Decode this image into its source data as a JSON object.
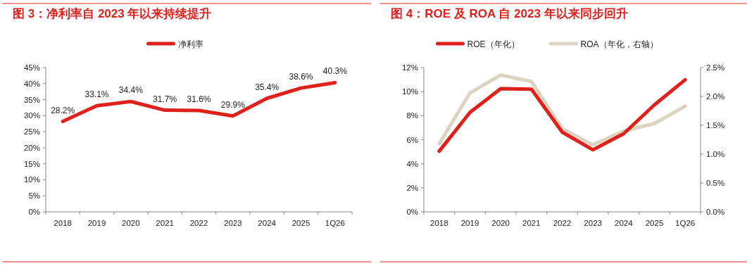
{
  "chart_data": [
    {
      "type": "line",
      "title": "图 3：净利率自 2023 年以来持续提升",
      "categories": [
        "2018",
        "2019",
        "2020",
        "2021",
        "2022",
        "2023",
        "2024",
        "2025",
        "1Q26"
      ],
      "series": [
        {
          "name": "净利率",
          "color": "#e0201b",
          "values": [
            28.2,
            33.1,
            34.4,
            31.7,
            31.6,
            29.9,
            35.4,
            38.6,
            40.3
          ],
          "value_labels": [
            "28.2%",
            "33.1%",
            "34.4%",
            "31.7%",
            "31.6%",
            "29.9%",
            "35.4%",
            "38.6%",
            "40.3%"
          ]
        }
      ],
      "ylim": [
        0,
        45
      ],
      "yticks": [
        {
          "value": 0,
          "label": "0%"
        },
        {
          "value": 5,
          "label": "5%"
        },
        {
          "value": 10,
          "label": "10%"
        },
        {
          "value": 15,
          "label": "15%"
        },
        {
          "value": 20,
          "label": "20%"
        },
        {
          "value": 25,
          "label": "25%"
        },
        {
          "value": 30,
          "label": "30%"
        },
        {
          "value": 35,
          "label": "35%"
        },
        {
          "value": 40,
          "label": "40%"
        },
        {
          "value": 45,
          "label": "45%"
        }
      ],
      "legend": "top",
      "grid": false
    },
    {
      "type": "line",
      "title": "图 4：ROE 及 ROA 自 2023 年以来同步回升",
      "categories": [
        "2018",
        "2019",
        "2020",
        "2021",
        "2022",
        "2023",
        "2024",
        "2025",
        "1Q26"
      ],
      "series": [
        {
          "name": "ROE（年化）",
          "color": "#e0201b",
          "values": [
            5.04,
            8.27,
            10.24,
            10.2,
            6.63,
            5.16,
            6.5,
            8.9,
            10.98
          ]
        },
        {
          "name": "ROA（年化，右轴）",
          "color": "#ddd3bf",
          "axis": "y2",
          "values": [
            1.18,
            2.06,
            2.37,
            2.26,
            1.44,
            1.16,
            1.4,
            1.53,
            1.83
          ]
        }
      ],
      "ylim": [
        0,
        12
      ],
      "yticks": [
        {
          "value": 0,
          "label": "0%"
        },
        {
          "value": 2,
          "label": "2%"
        },
        {
          "value": 4,
          "label": "4%"
        },
        {
          "value": 6,
          "label": "6%"
        },
        {
          "value": 8,
          "label": "8%"
        },
        {
          "value": 10,
          "label": "10%"
        },
        {
          "value": 12,
          "label": "12%"
        }
      ],
      "y2lim": [
        0,
        2.5
      ],
      "y2ticks": [
        {
          "value": 0,
          "label": "0.0%"
        },
        {
          "value": 0.5,
          "label": "0.5%"
        },
        {
          "value": 1,
          "label": "1.0%"
        },
        {
          "value": 1.5,
          "label": "1.5%"
        },
        {
          "value": 2,
          "label": "2.0%"
        },
        {
          "value": 2.5,
          "label": "2.5%"
        }
      ],
      "legend": "top",
      "grid": false
    }
  ]
}
